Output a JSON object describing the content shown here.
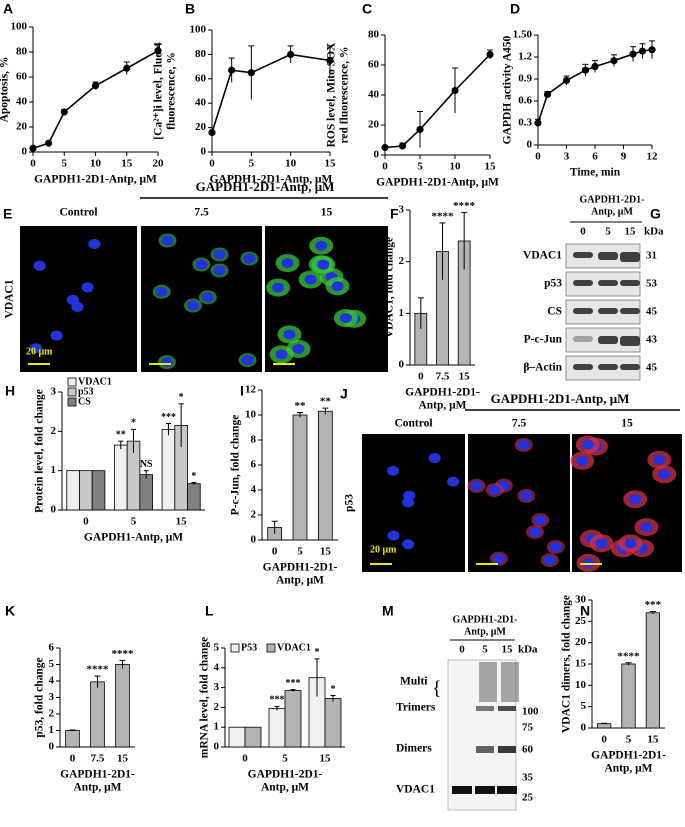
{
  "chart_data": [
    {
      "type": "line",
      "panel": "A",
      "y_label": [
        "Apoptosis, %"
      ],
      "x_label": [
        "GAPDH1-2D1-Antp, μM"
      ],
      "x": [
        0,
        2.5,
        5,
        10,
        15,
        20
      ],
      "values": [
        3,
        7,
        32,
        53,
        67,
        81
      ],
      "errors": [
        1,
        1,
        2,
        3,
        5,
        5
      ],
      "xlim": [
        0,
        20
      ],
      "xticks": [
        0,
        5,
        10,
        15,
        20
      ],
      "ylim": [
        0,
        100
      ],
      "yticks": [
        0,
        20,
        40,
        60,
        80,
        100
      ],
      "color": "#000000"
    },
    {
      "type": "line",
      "panel": "B",
      "y_label": [
        "[Ca²⁺]i level, Fluo-4",
        "fluorescence, %"
      ],
      "x_label": [
        "GAPDH1-2D1-Antp, μM"
      ],
      "x": [
        0,
        2.5,
        5,
        10,
        15
      ],
      "values": [
        16,
        67,
        65,
        80,
        75
      ],
      "errors": [
        1,
        10,
        22,
        7,
        12
      ],
      "xlim": [
        0,
        15
      ],
      "xticks": [
        0,
        5,
        10,
        15
      ],
      "ylim": [
        0,
        100
      ],
      "yticks": [
        0,
        20,
        40,
        60,
        80,
        100
      ],
      "color": "#000000"
    },
    {
      "type": "line",
      "panel": "C",
      "y_label": [
        "ROS level, Mito SOX",
        "red fluorescence, %"
      ],
      "x_label": [
        "GAPDH1-2D1-Antp, μM"
      ],
      "x": [
        0,
        2.5,
        5,
        10,
        15
      ],
      "values": [
        5,
        6,
        17,
        43,
        67
      ],
      "errors": [
        1,
        2,
        12,
        15,
        3
      ],
      "xlim": [
        0,
        15
      ],
      "xticks": [
        0,
        5,
        10,
        15
      ],
      "ylim": [
        0,
        80
      ],
      "yticks": [
        0,
        20,
        40,
        60,
        80
      ],
      "color": "#000000"
    },
    {
      "type": "line",
      "panel": "D",
      "y_label": [
        "GAPDH activity A450"
      ],
      "x_label": [
        "Time, min"
      ],
      "x": [
        0,
        1,
        3,
        5,
        6,
        8,
        10,
        11,
        12
      ],
      "values": [
        0.3,
        0.69,
        0.88,
        1.02,
        1.07,
        1.15,
        1.24,
        1.28,
        1.3
      ],
      "errors": [
        0.05,
        0.04,
        0.06,
        0.08,
        0.08,
        0.08,
        0.1,
        0.1,
        0.12
      ],
      "xlim": [
        0,
        12
      ],
      "xticks": [
        0,
        3,
        6,
        9,
        12
      ],
      "ylim": [
        0,
        1.5
      ],
      "yticks": [
        0,
        0.3,
        0.6,
        0.9,
        1.2,
        {
          "value": 1.5,
          "label": "1.50"
        }
      ],
      "color": "#000000"
    },
    {
      "type": "bar",
      "panel": "F",
      "y_label": [
        "VDAC1, fold change"
      ],
      "x_label": [
        "GAPDH1-2D1-",
        "Antp, μM"
      ],
      "categories": [
        "0",
        "7.5",
        "15"
      ],
      "values": [
        1,
        2.2,
        2.4
      ],
      "errors": [
        0.3,
        0.55,
        0.55
      ],
      "annotations": [
        null,
        "****",
        "****"
      ],
      "ylim": [
        0,
        3
      ],
      "yticks": [
        0,
        1,
        2,
        3
      ],
      "color": "#b4b4b4"
    },
    {
      "type": "grouped-bar",
      "panel": "H",
      "y_label": [
        "Protein level, fold change"
      ],
      "x_label": [
        "GAPDH1-Antp, μM"
      ],
      "categories": [
        "0",
        "5",
        "15"
      ],
      "series": [
        {
          "name": "VDAC1",
          "color": "#f0f0f0",
          "values": [
            1,
            1.65,
            2.05
          ],
          "errors": [
            0,
            0.1,
            0.15
          ],
          "annotations": [
            null,
            "**",
            "***"
          ]
        },
        {
          "name": "p53",
          "color": "#c8c8c8",
          "values": [
            1,
            1.75,
            2.15
          ],
          "errors": [
            0,
            0.3,
            0.55
          ],
          "annotations": [
            null,
            "*",
            "*"
          ]
        },
        {
          "name": "CS",
          "color": "#808080",
          "values": [
            1,
            0.9,
            0.67
          ],
          "errors": [
            0,
            0.1,
            0.03
          ],
          "annotations": [
            null,
            "NS",
            "*"
          ]
        }
      ],
      "legend": "top-left",
      "legend_orientation": "vertical",
      "ylim": [
        0,
        3
      ],
      "yticks": [
        0,
        1,
        2,
        3
      ]
    },
    {
      "type": "bar",
      "panel": "I",
      "y_label": [
        "P-c-Jun, fold change"
      ],
      "x_label": [
        "GAPDH1-2D1-",
        "Antp, μM"
      ],
      "categories": [
        "0",
        "5",
        "15"
      ],
      "values": [
        1,
        10,
        10.3
      ],
      "errors": [
        0.5,
        0.2,
        0.25
      ],
      "annotations": [
        null,
        "**",
        "**"
      ],
      "ylim": [
        0,
        12
      ],
      "yticks": [
        0,
        2,
        4,
        6,
        8,
        10,
        12
      ],
      "color": "#b4b4b4"
    },
    {
      "type": "bar",
      "panel": "K",
      "y_label": [
        "p53, fold change"
      ],
      "x_label": [
        "GAPDH1-2D1-",
        "Antp, μM"
      ],
      "categories": [
        "0",
        "7.5",
        "15"
      ],
      "values": [
        1,
        3.95,
        5
      ],
      "errors": [
        0.03,
        0.35,
        0.25
      ],
      "annotations": [
        null,
        "****",
        "****"
      ],
      "ylim": [
        0,
        6
      ],
      "yticks": [
        0,
        1,
        2,
        3,
        4,
        5,
        6
      ],
      "color": "#b4b4b4"
    },
    {
      "type": "grouped-bar",
      "panel": "L",
      "y_label": [
        "mRNA level, fold change"
      ],
      "x_label": [
        "GAPDH1-2D1-",
        "Antp, μM"
      ],
      "categories": [
        "0",
        "5",
        "15"
      ],
      "series": [
        {
          "name": "P53",
          "color": "#f0f0f0",
          "values": [
            1,
            1.95,
            3.5
          ],
          "errors": [
            0,
            0.1,
            0.95
          ],
          "annotations": [
            null,
            "***",
            "*"
          ]
        },
        {
          "name": "VDAC1",
          "color": "#b4b4b4",
          "values": [
            1,
            2.85,
            2.45
          ],
          "errors": [
            0,
            0.05,
            0.15
          ],
          "annotations": [
            null,
            "***",
            "*"
          ]
        }
      ],
      "legend": "top-left",
      "legend_orientation": "horizontal",
      "ylim": [
        0,
        5
      ],
      "yticks": [
        0,
        1,
        2,
        3,
        4,
        5
      ]
    },
    {
      "type": "bar",
      "panel": "N",
      "y_label": [
        "VDAC1 dimers, fold change"
      ],
      "x_label": [
        "GAPDH1-2D1-",
        "Antp, μM"
      ],
      "categories": [
        "0",
        "5",
        "15"
      ],
      "values": [
        1,
        15,
        27
      ],
      "errors": [
        0.1,
        0.3,
        0.3
      ],
      "annotations": [
        null,
        "****",
        "***"
      ],
      "ylim": [
        0,
        30
      ],
      "yticks": [
        0,
        5,
        10,
        15,
        20,
        25,
        30
      ],
      "color": "#b4b4b4"
    }
  ],
  "images": [
    {
      "panel": "E",
      "title": "GAPDH1-2D1-Antp, μM",
      "columns": [
        "Control",
        "7.5",
        "15"
      ],
      "row_label": "VDAC1",
      "scale_bar": "20 μm"
    },
    {
      "panel": "J",
      "title": "GAPDH1-2D1-Antp, μM",
      "columns": [
        "Control",
        "7.5",
        "15"
      ],
      "row_label": "p53",
      "scale_bar": "20 μm"
    }
  ],
  "blots": [
    {
      "panel": "G",
      "header": [
        "GAPDH1-2D1-",
        "Antp, μM"
      ],
      "lanes": [
        "0",
        "5",
        "15"
      ],
      "unit": "kDa",
      "rows": [
        {
          "label": "VDAC1",
          "kda": 31
        },
        {
          "label": "p53",
          "kda": 53
        },
        {
          "label": "CS",
          "kda": 45
        },
        {
          "label": "P-c-Jun",
          "kda": 43
        },
        {
          "label": "β–Actin",
          "kda": 45
        }
      ]
    },
    {
      "panel": "M",
      "header": [
        "GAPDH1-2D1-",
        "Antp, μM"
      ],
      "lanes": [
        "0",
        "5",
        "15"
      ],
      "unit": "kDa",
      "markers": [
        100,
        75,
        60,
        35,
        25
      ],
      "bands": [
        "Multi",
        "Trimers",
        "Dimers",
        "VDAC1"
      ]
    }
  ]
}
